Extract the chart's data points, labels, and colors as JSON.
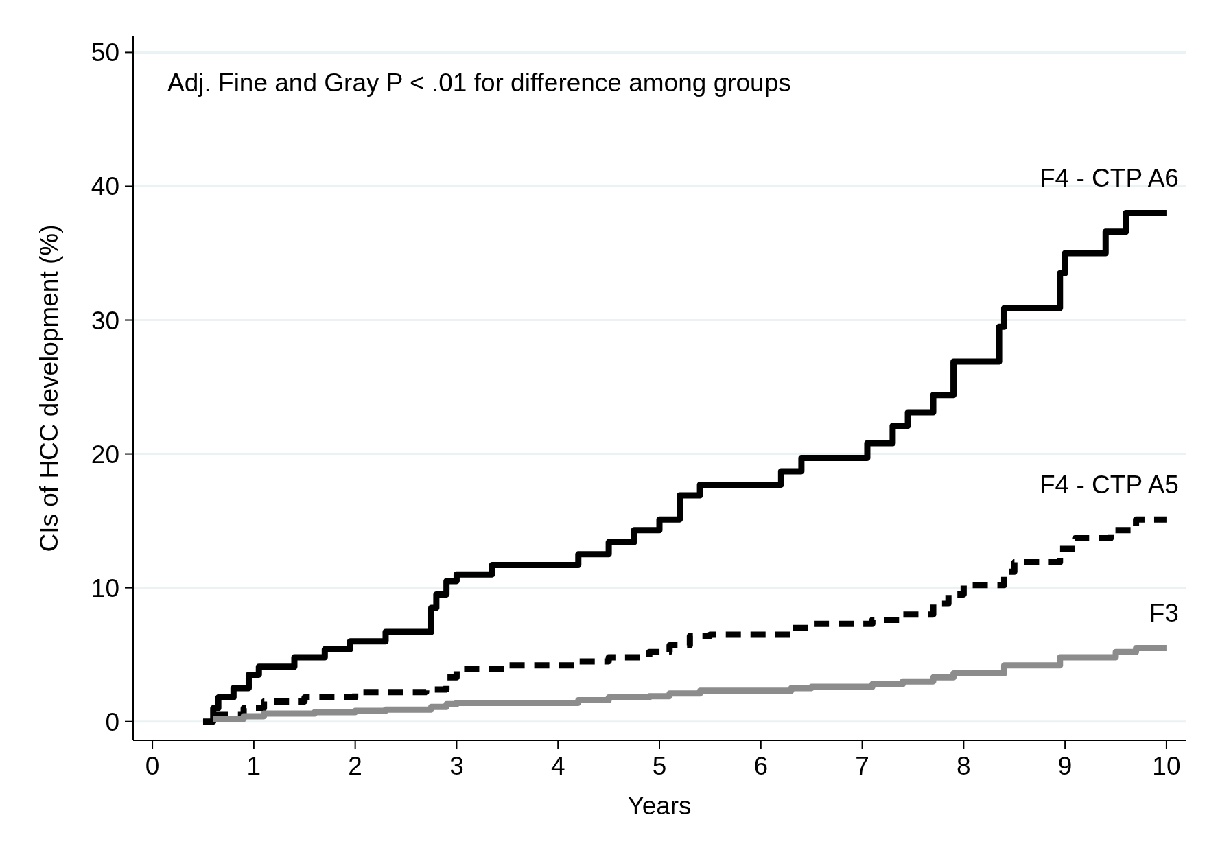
{
  "chart_data": {
    "type": "step",
    "xlabel": "Years",
    "ylabel": "CIs of HCC development (%)",
    "annotations": [
      "Adj. Fine and Gray P < .01 for difference among groups"
    ],
    "xlim": [
      -0.19,
      10.19
    ],
    "ylim": [
      -1.4,
      51.2
    ],
    "xticks": [
      0,
      1,
      2,
      3,
      4,
      5,
      6,
      7,
      8,
      9,
      10
    ],
    "yticks": [
      0,
      10,
      20,
      30,
      40,
      50
    ],
    "grid": "y",
    "series": [
      {
        "name": "F4 - CTP A6",
        "color": "#000000",
        "line_style": "solid",
        "x": [
          0.5,
          0.6,
          0.65,
          0.8,
          0.95,
          1.05,
          1.4,
          1.7,
          1.95,
          2.3,
          2.75,
          2.8,
          2.9,
          3.0,
          3.35,
          4.2,
          4.5,
          4.75,
          5.0,
          5.2,
          5.4,
          6.2,
          6.4,
          7.05,
          7.3,
          7.45,
          7.7,
          7.9,
          8.35,
          8.4,
          8.95,
          9.0,
          9.4,
          9.6,
          10
        ],
        "values": [
          0,
          1,
          1.8,
          2.5,
          3.5,
          4.1,
          4.8,
          5.4,
          6.0,
          6.7,
          8.5,
          9.5,
          10.5,
          11.0,
          11.7,
          12.5,
          13.4,
          14.3,
          15.1,
          16.9,
          17.7,
          18.7,
          19.7,
          20.8,
          22.1,
          23.1,
          24.4,
          26.9,
          29.5,
          30.9,
          33.5,
          35.0,
          36.6,
          38.0,
          38.0
        ]
      },
      {
        "name": "F4 - CTP A5",
        "color": "#000000",
        "line_style": "dashed",
        "x": [
          0.6,
          0.9,
          1.1,
          1.5,
          2.0,
          2.7,
          2.9,
          3.0,
          3.5,
          4.2,
          4.5,
          4.9,
          5.1,
          5.3,
          5.5,
          6.3,
          6.5,
          7.1,
          7.4,
          7.7,
          7.85,
          8.0,
          8.4,
          8.5,
          8.95,
          9.1,
          9.45,
          9.7,
          10
        ],
        "values": [
          0.5,
          1.0,
          1.5,
          1.8,
          2.2,
          2.4,
          3.3,
          3.9,
          4.2,
          4.5,
          4.8,
          5.2,
          5.7,
          6.4,
          6.5,
          7.0,
          7.3,
          7.6,
          8.0,
          8.8,
          9.5,
          10.2,
          11.2,
          11.9,
          12.9,
          13.7,
          14.3,
          15.1,
          15.1
        ]
      },
      {
        "name": "F3",
        "color": "#8c8c8c",
        "line_style": "solid",
        "x": [
          0.6,
          0.9,
          1.1,
          1.6,
          2.0,
          2.3,
          2.75,
          2.9,
          3.0,
          4.2,
          4.5,
          4.9,
          5.1,
          5.4,
          6.3,
          6.5,
          7.1,
          7.4,
          7.7,
          7.9,
          8.4,
          8.95,
          9.5,
          9.7,
          10
        ],
        "values": [
          0.2,
          0.4,
          0.6,
          0.7,
          0.8,
          0.9,
          1.1,
          1.3,
          1.4,
          1.6,
          1.8,
          1.9,
          2.1,
          2.3,
          2.5,
          2.6,
          2.8,
          3.0,
          3.3,
          3.6,
          4.2,
          4.8,
          5.2,
          5.5,
          5.5
        ]
      }
    ]
  }
}
